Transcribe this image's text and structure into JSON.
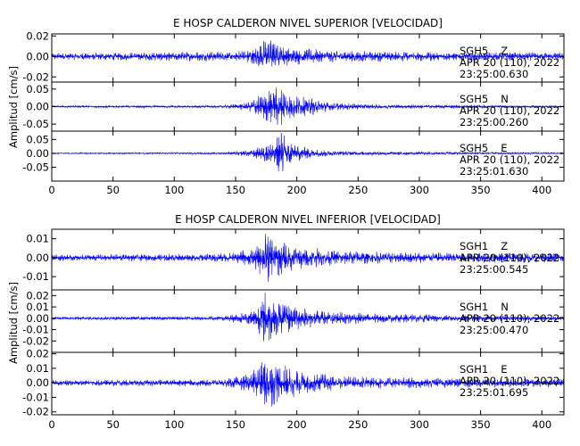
{
  "chart_data": [
    {
      "type": "line",
      "title": "E HOSP CALDERON NIVEL SUPERIOR [VELOCIDAD]",
      "xlabel": "",
      "ylabel": "Amplitud [cm/s]",
      "xlim": [
        0,
        418
      ],
      "xticks": [
        "0",
        "50",
        "100",
        "150",
        "200",
        "250",
        "300",
        "350",
        "400"
      ],
      "color": "#0000ff",
      "grid": false,
      "series": [
        {
          "name": "SGH5 Z",
          "station": "SGH5",
          "component": "Z",
          "date": "APR 20 (110), 2022",
          "time": "23:25:00.630",
          "ylim": [
            -0.025,
            0.022
          ],
          "yticks": [
            "0.02",
            "0.00",
            "-0.02"
          ],
          "envelope": [
            [
              0,
              0.0035
            ],
            [
              150,
              0.005
            ],
            [
              163,
              0.008
            ],
            [
              168,
              0.011
            ],
            [
              173,
              0.017
            ],
            [
              176,
              0.02
            ],
            [
              182,
              0.014
            ],
            [
              190,
              0.01
            ],
            [
              205,
              0.008
            ],
            [
              230,
              0.006
            ],
            [
              280,
              0.005
            ],
            [
              340,
              0.0045
            ],
            [
              418,
              0.004
            ]
          ]
        },
        {
          "name": "SGH5 N",
          "station": "SGH5",
          "component": "N",
          "date": "APR 20 (110), 2022",
          "time": "23:25:00.260",
          "ylim": [
            -0.07,
            0.07
          ],
          "yticks": [
            "0.05",
            "0.00",
            "-0.05"
          ],
          "envelope": [
            [
              0,
              0.003
            ],
            [
              140,
              0.004
            ],
            [
              160,
              0.012
            ],
            [
              170,
              0.035
            ],
            [
              178,
              0.055
            ],
            [
              185,
              0.06
            ],
            [
              192,
              0.045
            ],
            [
              200,
              0.03
            ],
            [
              215,
              0.025
            ],
            [
              230,
              0.012
            ],
            [
              260,
              0.007
            ],
            [
              418,
              0.003
            ]
          ]
        },
        {
          "name": "SGH5 E",
          "station": "SGH5",
          "component": "E",
          "date": "APR 20 (110), 2022",
          "time": "23:25:01.630",
          "ylim": [
            -0.1,
            0.08
          ],
          "yticks": [
            "0.05",
            "0.00",
            "-0.05"
          ],
          "envelope": [
            [
              0,
              0.002
            ],
            [
              140,
              0.004
            ],
            [
              162,
              0.012
            ],
            [
              172,
              0.03
            ],
            [
              180,
              0.055
            ],
            [
              187,
              0.085
            ],
            [
              193,
              0.06
            ],
            [
              200,
              0.03
            ],
            [
              215,
              0.015
            ],
            [
              240,
              0.008
            ],
            [
              418,
              0.003
            ]
          ]
        }
      ]
    },
    {
      "type": "line",
      "title": "E HOSP CALDERON NIVEL INFERIOR [VELOCIDAD]",
      "xlabel": "",
      "ylabel": "Amplitud [cm/s]",
      "xlim": [
        0,
        418
      ],
      "xticks": [
        "0",
        "50",
        "100",
        "150",
        "200",
        "250",
        "300",
        "350",
        "400"
      ],
      "color": "#0000ff",
      "grid": false,
      "series": [
        {
          "name": "SGH1 Z",
          "station": "SGH1",
          "component": "Z",
          "date": "APR 20 (110), 2022",
          "time": "23:25:00.545",
          "ylim": [
            -0.017,
            0.015
          ],
          "yticks": [
            "0.01",
            "0.00",
            "-0.01"
          ],
          "envelope": [
            [
              0,
              0.0018
            ],
            [
              120,
              0.002
            ],
            [
              150,
              0.003
            ],
            [
              163,
              0.005
            ],
            [
              170,
              0.009
            ],
            [
              174,
              0.014
            ],
            [
              180,
              0.012
            ],
            [
              190,
              0.009
            ],
            [
              205,
              0.006
            ],
            [
              230,
              0.004
            ],
            [
              280,
              0.003
            ],
            [
              418,
              0.0025
            ]
          ]
        },
        {
          "name": "SGH1 N",
          "station": "SGH1",
          "component": "N",
          "date": "APR 20 (110), 2022",
          "time": "23:25:00.470",
          "ylim": [
            -0.03,
            0.025
          ],
          "yticks": [
            "0.02",
            "0.01",
            "0.00",
            "-0.01",
            "-0.02"
          ],
          "envelope": [
            [
              0,
              0.0015
            ],
            [
              140,
              0.002
            ],
            [
              160,
              0.006
            ],
            [
              168,
              0.012
            ],
            [
              174,
              0.025
            ],
            [
              180,
              0.02
            ],
            [
              190,
              0.015
            ],
            [
              205,
              0.01
            ],
            [
              230,
              0.006
            ],
            [
              270,
              0.004
            ],
            [
              418,
              0.002
            ]
          ]
        },
        {
          "name": "SGH1 E",
          "station": "SGH1",
          "component": "E",
          "date": "APR 20 (110), 2022",
          "time": "23:25:01.695",
          "ylim": [
            -0.022,
            0.021
          ],
          "yticks": [
            "0.02",
            "0.01",
            "0.00",
            "-0.01",
            "-0.02"
          ],
          "envelope": [
            [
              0,
              0.002
            ],
            [
              140,
              0.0025
            ],
            [
              160,
              0.006
            ],
            [
              168,
              0.012
            ],
            [
              174,
              0.02
            ],
            [
              182,
              0.016
            ],
            [
              192,
              0.012
            ],
            [
              205,
              0.008
            ],
            [
              235,
              0.005
            ],
            [
              280,
              0.004
            ],
            [
              418,
              0.003
            ]
          ]
        }
      ]
    }
  ]
}
